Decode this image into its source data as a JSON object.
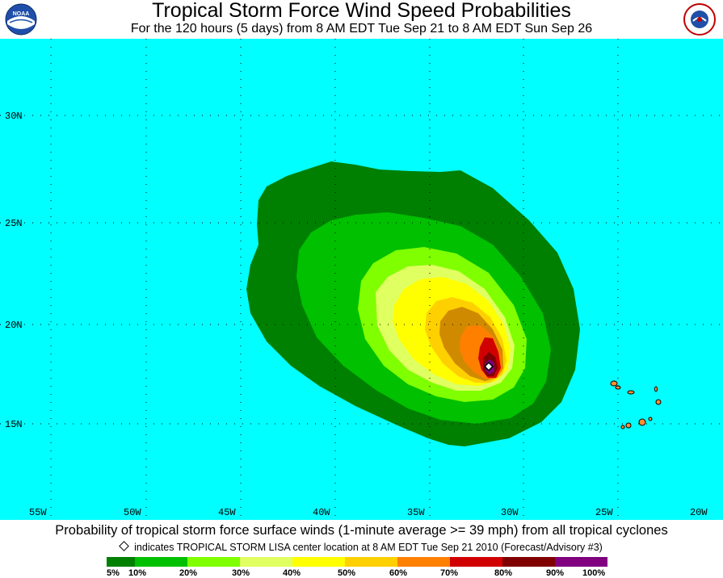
{
  "header": {
    "title": "Tropical Storm Force Wind Speed Probabilities",
    "subtitle": "For the 120 hours (5 days) from 8 AM EDT Tue Sep 21 to 8 AM EDT Sun Sep 26",
    "logo_left": "NOAA",
    "logo_right": "NATIONAL WEATHER SERVICE"
  },
  "map": {
    "background_color": "#00ffff",
    "lat_labels": [
      "30N",
      "25N",
      "20N",
      "15N"
    ],
    "lon_labels": [
      "55W",
      "50W",
      "45W",
      "40W",
      "35W",
      "30W",
      "25W",
      "20W"
    ],
    "storm_center": {
      "lat": 17.9,
      "lon": 31.2
    }
  },
  "footer": {
    "description": "Probability of tropical storm force surface winds (1-minute average >= 39 mph) from all tropical cyclones",
    "indicator": "indicates TROPICAL STORM LISA center location at 8 AM EDT Tue Sep 21 2010 (Forecast/Advisory #3)"
  },
  "legend": {
    "colors": [
      "#008000",
      "#00c000",
      "#80ff00",
      "#e0ff60",
      "#ffff00",
      "#ffd000",
      "#ff8000",
      "#d00000",
      "#800000",
      "#800080"
    ],
    "labels": [
      "5%",
      "10%",
      "20%",
      "30%",
      "40%",
      "50%",
      "60%",
      "70%",
      "80%",
      "90%",
      "100%"
    ]
  }
}
